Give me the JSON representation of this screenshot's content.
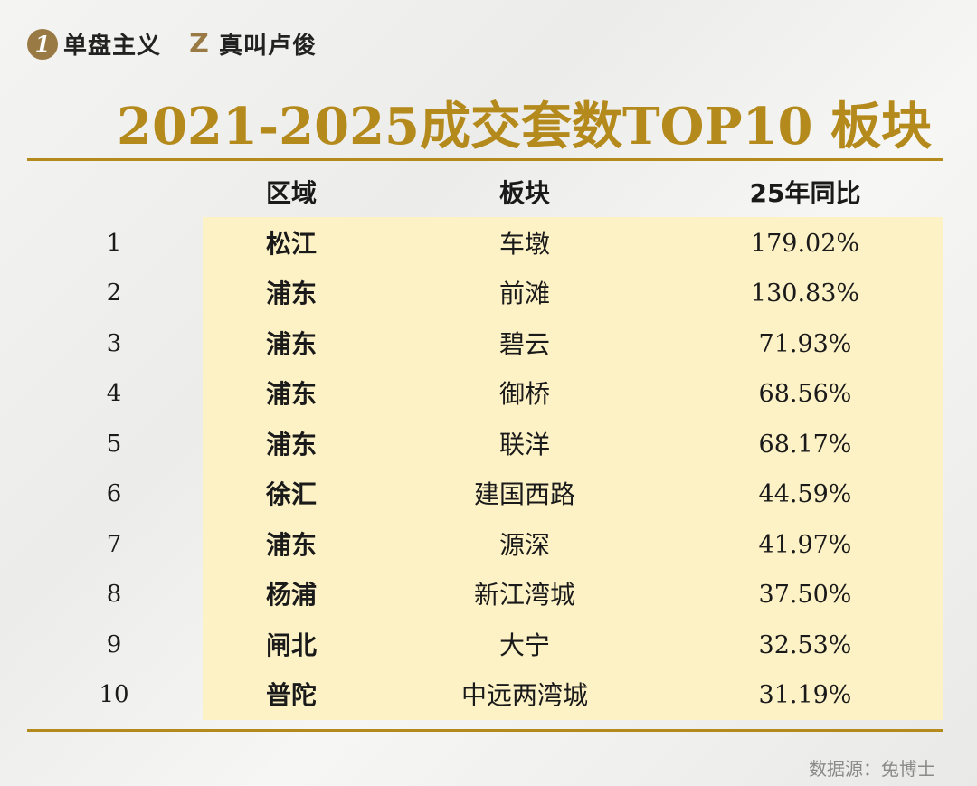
{
  "brand": {
    "badge1": "1",
    "name1": "单盘主义",
    "badge2": "Z",
    "name2": "真叫卢俊"
  },
  "title": "2021-2025成交套数TOP10 板块",
  "headers": {
    "rank": "",
    "district": "区域",
    "block": "板块",
    "yoy": "25年同比"
  },
  "rows": [
    {
      "rank": "1",
      "district": "松江",
      "block": "车墩",
      "yoy": "179.02%"
    },
    {
      "rank": "2",
      "district": "浦东",
      "block": "前滩",
      "yoy": "130.83%"
    },
    {
      "rank": "3",
      "district": "浦东",
      "block": "碧云",
      "yoy": "71.93%"
    },
    {
      "rank": "4",
      "district": "浦东",
      "block": "御桥",
      "yoy": "68.56%"
    },
    {
      "rank": "5",
      "district": "浦东",
      "block": "联洋",
      "yoy": "68.17%"
    },
    {
      "rank": "6",
      "district": "徐汇",
      "block": "建国西路",
      "yoy": "44.59%"
    },
    {
      "rank": "7",
      "district": "浦东",
      "block": "源深",
      "yoy": "41.97%"
    },
    {
      "rank": "8",
      "district": "杨浦",
      "block": "新江湾城",
      "yoy": "37.50%"
    },
    {
      "rank": "9",
      "district": "闸北",
      "block": "大宁",
      "yoy": "32.53%"
    },
    {
      "rank": "10",
      "district": "普陀",
      "block": "中远两湾城",
      "yoy": "31.19%"
    }
  ],
  "source": "数据源：兔博士",
  "colors": {
    "accent": "#b48a1c",
    "highlight": "#fdf2c6",
    "badge": "#9a7a44"
  }
}
